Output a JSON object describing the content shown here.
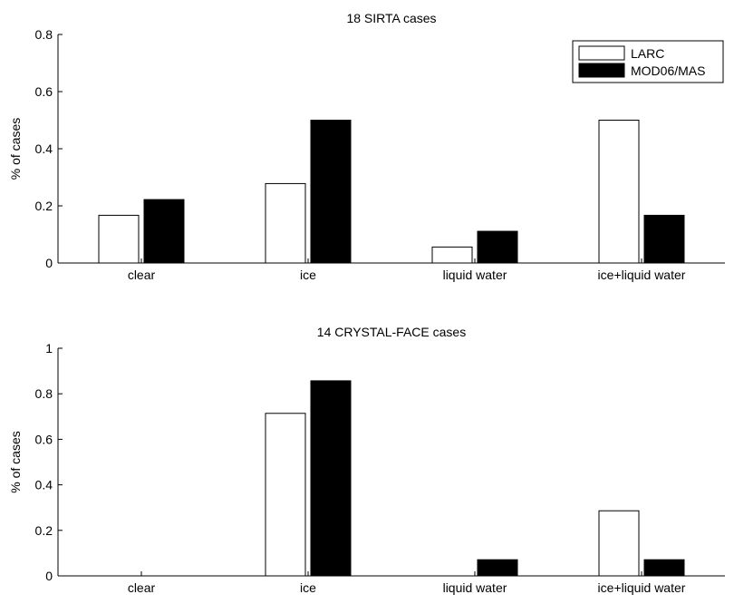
{
  "chart_data": [
    {
      "type": "bar",
      "title": "18 SIRTA cases",
      "ylabel": "% of cases",
      "xlabel": "",
      "categories": [
        "clear",
        "ice",
        "liquid water",
        "ice+liquid water"
      ],
      "ylim": [
        0,
        0.8
      ],
      "yticks": [
        "0",
        "0.2",
        "0.4",
        "0.6",
        "0.8"
      ],
      "yticks_values": [
        0,
        0.2,
        0.4,
        0.6,
        0.8
      ],
      "legend_position": "top-right",
      "series": [
        {
          "name": "LARC",
          "color": "#ffffff",
          "values": [
            0.167,
            0.278,
            0.056,
            0.5
          ]
        },
        {
          "name": "MOD06/MAS",
          "color": "#000000",
          "values": [
            0.222,
            0.5,
            0.111,
            0.167
          ]
        }
      ]
    },
    {
      "type": "bar",
      "title": "14 CRYSTAL-FACE cases",
      "ylabel": "% of cases",
      "xlabel": "",
      "categories": [
        "clear",
        "ice",
        "liquid water",
        "ice+liquid water"
      ],
      "ylim": [
        0,
        1
      ],
      "yticks": [
        "0",
        "0.2",
        "0.4",
        "0.6",
        "0.8",
        "1"
      ],
      "yticks_values": [
        0,
        0.2,
        0.4,
        0.6,
        0.8,
        1
      ],
      "series": [
        {
          "name": "LARC",
          "color": "#ffffff",
          "values": [
            0,
            0.714,
            0,
            0.286
          ]
        },
        {
          "name": "MOD06/MAS",
          "color": "#000000",
          "values": [
            0,
            0.857,
            0.071,
            0.071
          ]
        }
      ]
    }
  ]
}
